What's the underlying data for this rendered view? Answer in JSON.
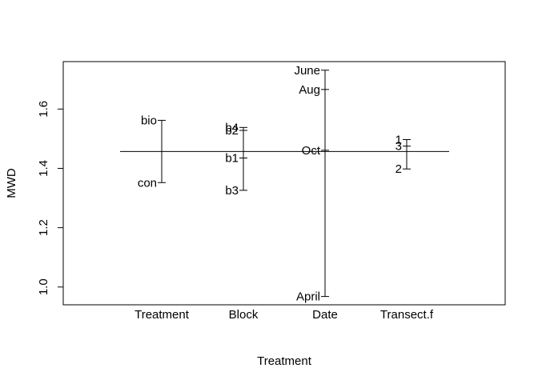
{
  "chart_data": {
    "type": "design-plot",
    "xlabel": "Treatment",
    "ylabel": "MWD",
    "ylim": [
      0.94,
      1.76
    ],
    "yticks": [
      1.0,
      1.2,
      1.4,
      1.6
    ],
    "ytick_labels": [
      "1.0",
      "1.2",
      "1.4",
      "1.6"
    ],
    "grand_mean": 1.457,
    "factors": [
      {
        "name": "Treatment",
        "levels": [
          {
            "label": "bio",
            "value": 1.562
          },
          {
            "label": "con",
            "value": 1.352
          }
        ]
      },
      {
        "name": "Block",
        "levels": [
          {
            "label": "b4",
            "value": 1.538
          },
          {
            "label": "b2",
            "value": 1.528
          },
          {
            "label": "b1",
            "value": 1.435
          },
          {
            "label": "b3",
            "value": 1.326
          }
        ]
      },
      {
        "name": "Date",
        "levels": [
          {
            "label": "June",
            "value": 1.731
          },
          {
            "label": "Aug",
            "value": 1.666
          },
          {
            "label": "Oct",
            "value": 1.461
          },
          {
            "label": "April",
            "value": 0.968
          }
        ]
      },
      {
        "name": "Transect.f",
        "levels": [
          {
            "label": "1",
            "value": 1.497
          },
          {
            "label": "3",
            "value": 1.475
          },
          {
            "label": "2",
            "value": 1.398
          }
        ]
      }
    ]
  }
}
